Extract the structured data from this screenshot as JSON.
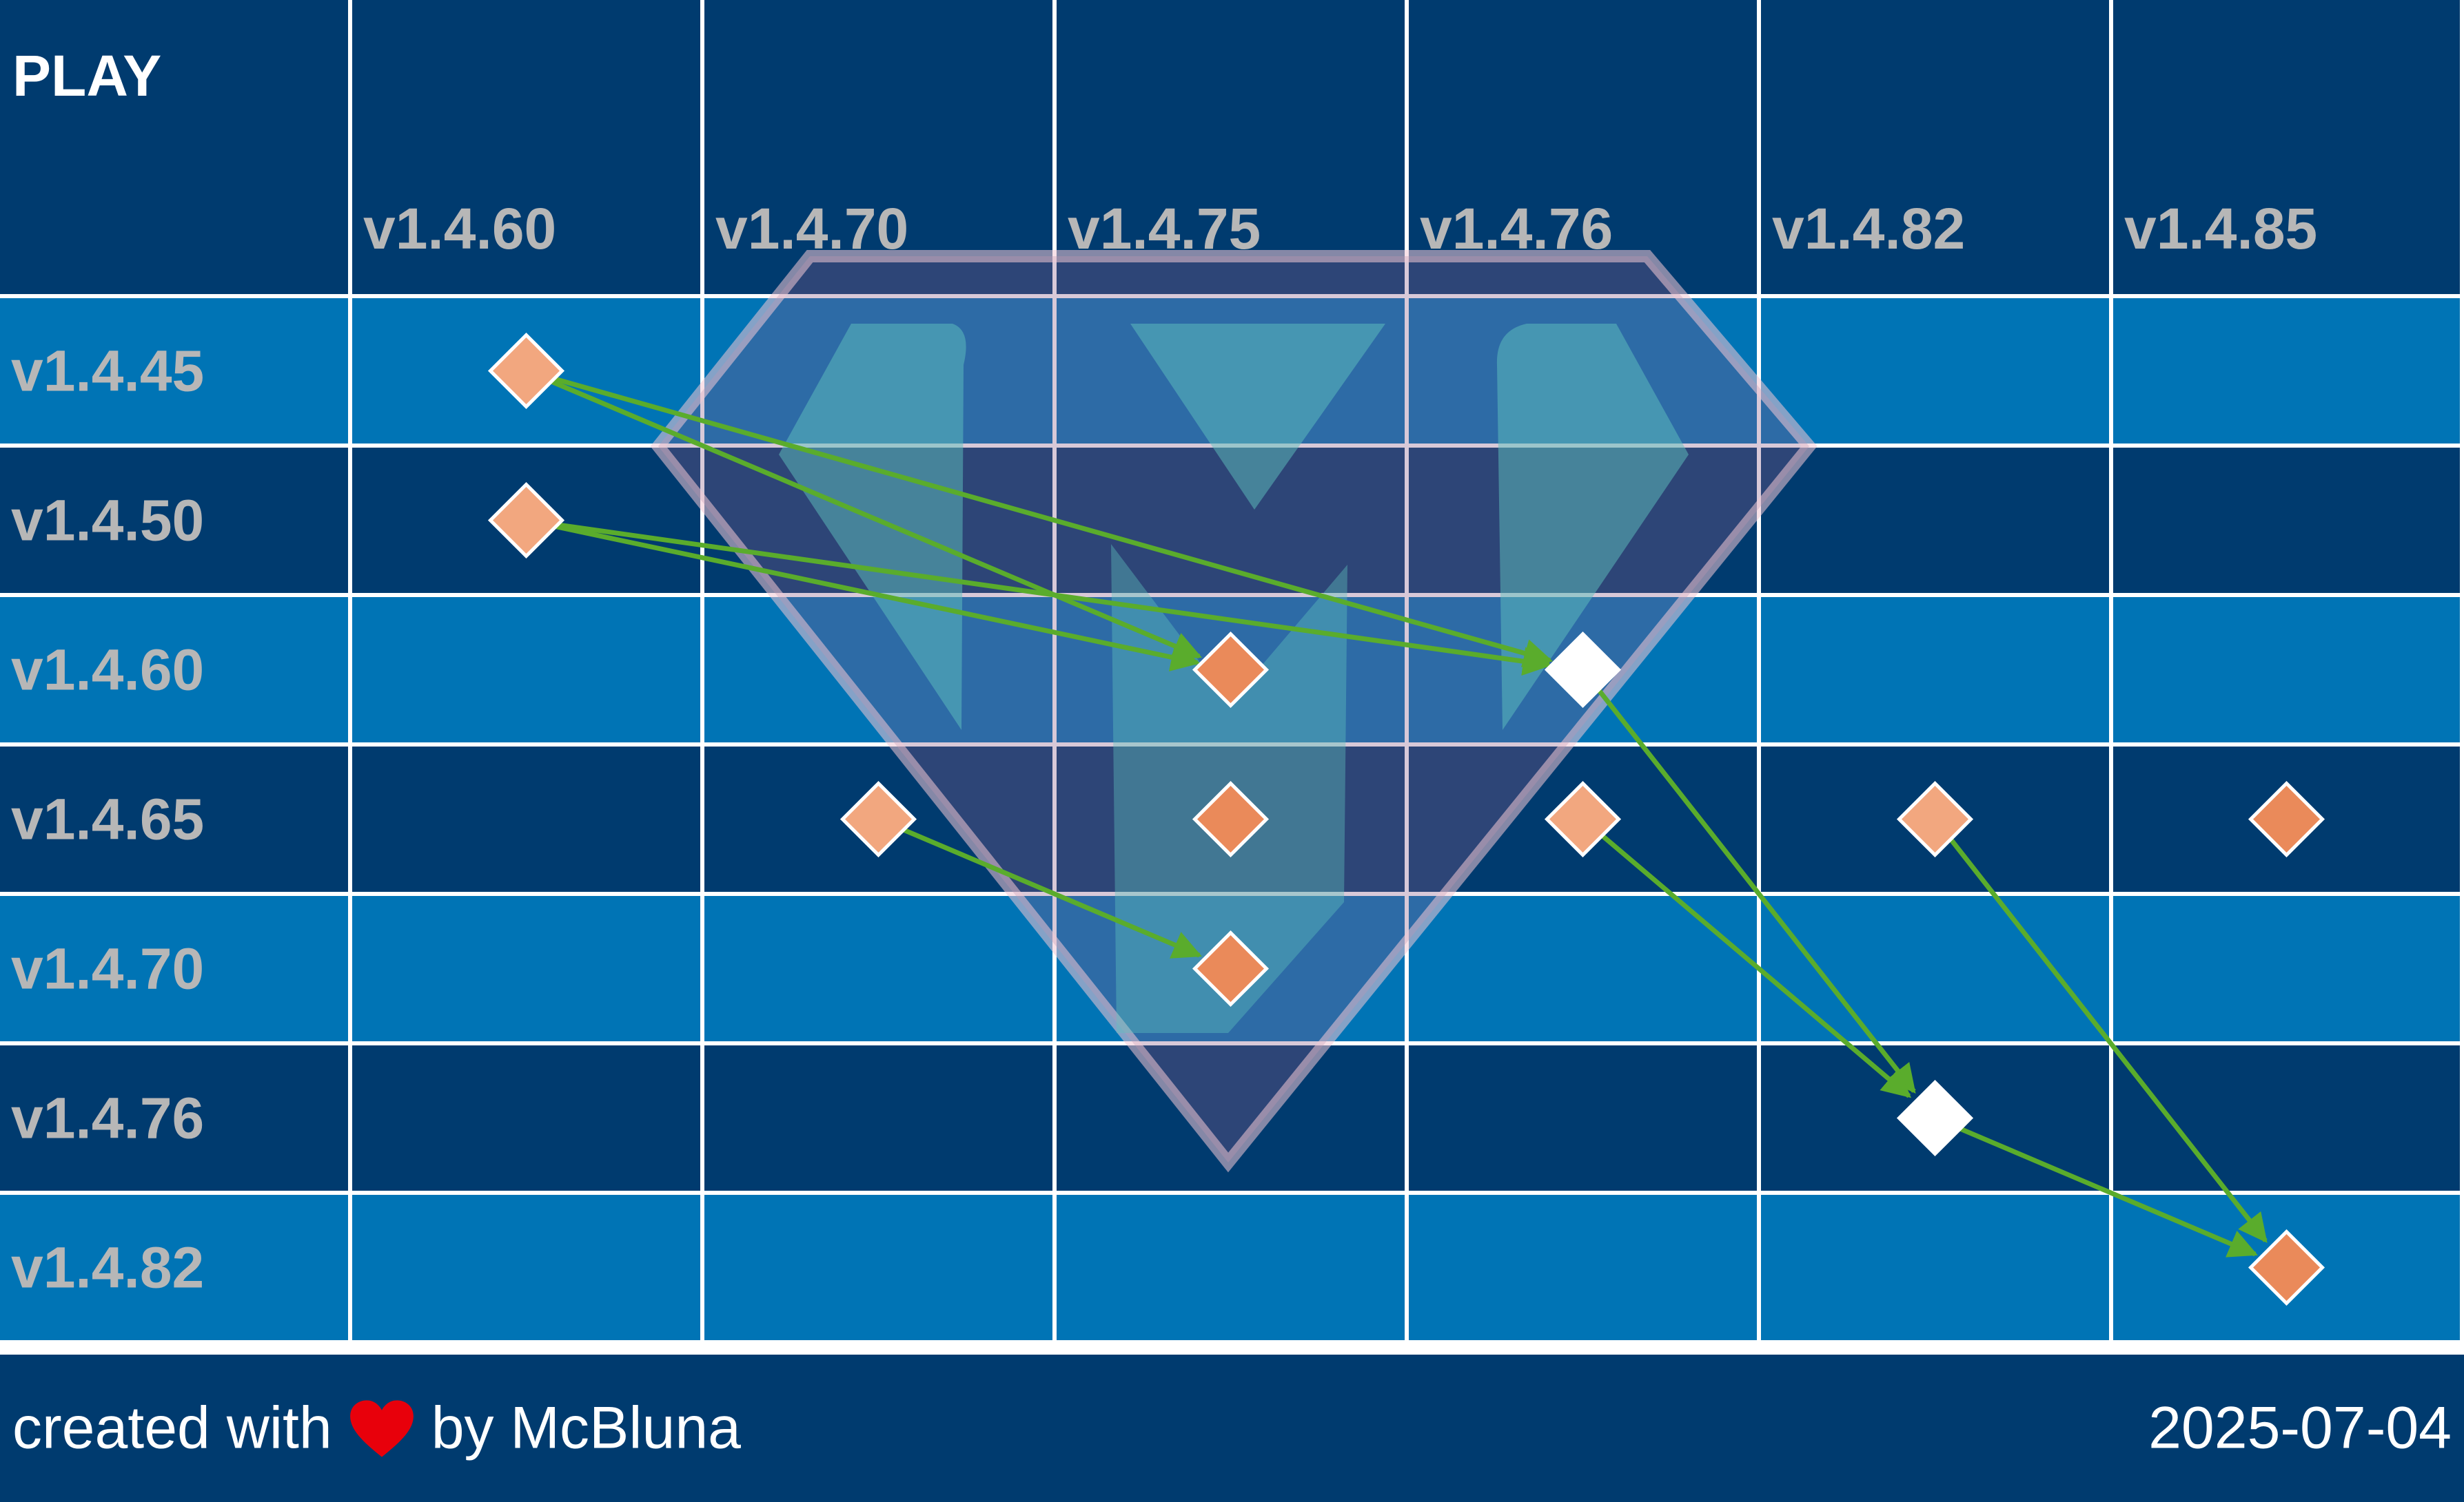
{
  "corner_label": "PLAY",
  "columns": [
    "v1.4.60",
    "v1.4.70",
    "v1.4.75",
    "v1.4.76",
    "v1.4.82",
    "v1.4.85"
  ],
  "rows": [
    "v1.4.45",
    "v1.4.50",
    "v1.4.60",
    "v1.4.65",
    "v1.4.70",
    "v1.4.76",
    "v1.4.82"
  ],
  "markers": [
    {
      "row": "v1.4.45",
      "col": "v1.4.60",
      "style": "light"
    },
    {
      "row": "v1.4.50",
      "col": "v1.4.60",
      "style": "light"
    },
    {
      "row": "v1.4.60",
      "col": "v1.4.75",
      "style": "medium"
    },
    {
      "row": "v1.4.60",
      "col": "v1.4.76",
      "style": "white"
    },
    {
      "row": "v1.4.65",
      "col": "v1.4.70",
      "style": "light"
    },
    {
      "row": "v1.4.65",
      "col": "v1.4.75",
      "style": "medium"
    },
    {
      "row": "v1.4.65",
      "col": "v1.4.76",
      "style": "light"
    },
    {
      "row": "v1.4.65",
      "col": "v1.4.82",
      "style": "light"
    },
    {
      "row": "v1.4.65",
      "col": "v1.4.85",
      "style": "medium"
    },
    {
      "row": "v1.4.70",
      "col": "v1.4.75",
      "style": "medium"
    },
    {
      "row": "v1.4.76",
      "col": "v1.4.82",
      "style": "white"
    },
    {
      "row": "v1.4.82",
      "col": "v1.4.85",
      "style": "medium"
    }
  ],
  "arrows": [
    {
      "from": {
        "row": "v1.4.45",
        "col": "v1.4.60"
      },
      "to": {
        "row": "v1.4.60",
        "col": "v1.4.75"
      }
    },
    {
      "from": {
        "row": "v1.4.45",
        "col": "v1.4.60"
      },
      "to": {
        "row": "v1.4.60",
        "col": "v1.4.76"
      }
    },
    {
      "from": {
        "row": "v1.4.50",
        "col": "v1.4.60"
      },
      "to": {
        "row": "v1.4.60",
        "col": "v1.4.75"
      }
    },
    {
      "from": {
        "row": "v1.4.50",
        "col": "v1.4.60"
      },
      "to": {
        "row": "v1.4.60",
        "col": "v1.4.76"
      }
    },
    {
      "from": {
        "row": "v1.4.65",
        "col": "v1.4.70"
      },
      "to": {
        "row": "v1.4.70",
        "col": "v1.4.75"
      }
    },
    {
      "from": {
        "row": "v1.4.60",
        "col": "v1.4.76"
      },
      "to": {
        "row": "v1.4.76",
        "col": "v1.4.82"
      }
    },
    {
      "from": {
        "row": "v1.4.65",
        "col": "v1.4.76"
      },
      "to": {
        "row": "v1.4.76",
        "col": "v1.4.82"
      }
    },
    {
      "from": {
        "row": "v1.4.76",
        "col": "v1.4.82"
      },
      "to": {
        "row": "v1.4.82",
        "col": "v1.4.85"
      }
    },
    {
      "from": {
        "row": "v1.4.65",
        "col": "v1.4.82"
      },
      "to": {
        "row": "v1.4.82",
        "col": "v1.4.85"
      }
    }
  ],
  "colors": {
    "header_bg": "#003b6f",
    "row_light": "#0074b5",
    "row_dark": "#003b6f",
    "label_gray": "#b7b7b7",
    "marker_light": "#f2a77f",
    "marker_medium": "#ea8a5a",
    "marker_white": "#ffffff",
    "arrow_green": "#5aac2c",
    "heart_red": "#e8000b"
  },
  "footer": {
    "credit_prefix": "created with",
    "credit_icon": "heart-icon",
    "credit_suffix": "by McBluna",
    "date": "2025-07-04"
  }
}
